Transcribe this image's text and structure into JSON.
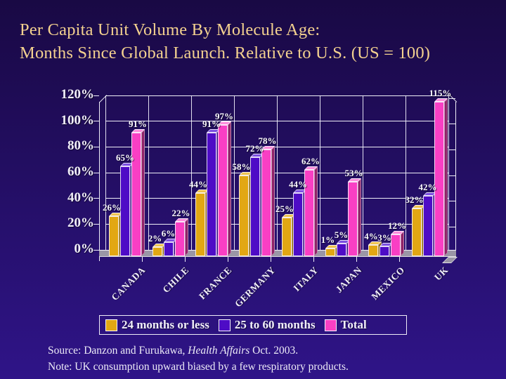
{
  "slide": {
    "title_line1": "Per Capita Unit Volume By Molecule Age:",
    "title_line2": "Months Since Global Launch. Relative to U.S. (US = 100)",
    "footer": {
      "source_prefix": "Source: Danzon and Furukawa, ",
      "source_italic": "Health Affairs",
      "source_suffix": " Oct. 2003.",
      "note": "Note: UK consumption upward biased by a few respiratory products."
    },
    "colors": {
      "background_top": "#190944",
      "background_bottom": "#2F1488",
      "title_text": "#F3D18F",
      "axis_text": "#F0EEF8",
      "gridline": "#EFEFF8",
      "floor": "#9A96A6"
    }
  },
  "chart_data": {
    "type": "bar",
    "title": "Per Capita Unit Volume By Molecule Age: Months Since Global Launch. Relative to U.S. (US = 100)",
    "categories": [
      "CANADA",
      "CHILE",
      "FRANCE",
      "GERMANY",
      "ITALY",
      "JAPAN",
      "MEXICO",
      "UK"
    ],
    "series": [
      {
        "name": "24 months or less",
        "color": "#E2A713",
        "top_color": "#EFC44F",
        "side_color": "#8A6508",
        "values": [
          26,
          2,
          44,
          58,
          25,
          1,
          4,
          32
        ]
      },
      {
        "name": "25 to 60 months",
        "color": "#4E0CC6",
        "top_color": "#7B4FE0",
        "side_color": "#32077E",
        "values": [
          65,
          6,
          91,
          72,
          44,
          5,
          3,
          42
        ]
      },
      {
        "name": "Total",
        "color": "#F93FC4",
        "top_color": "#FF8CDC",
        "side_color": "#8F2368",
        "values": [
          91,
          22,
          97,
          78,
          62,
          53,
          12,
          115
        ]
      }
    ],
    "xlabel": "",
    "ylabel": "",
    "ylim": [
      0,
      120
    ],
    "ytick_step": 20,
    "ytick_labels": [
      "0%",
      "20%",
      "40%",
      "60%",
      "80%",
      "100%",
      "120%"
    ],
    "data_label_format": "{v}%",
    "grid": true,
    "legend_position": "bottom",
    "style": "3d-clustered-column"
  }
}
